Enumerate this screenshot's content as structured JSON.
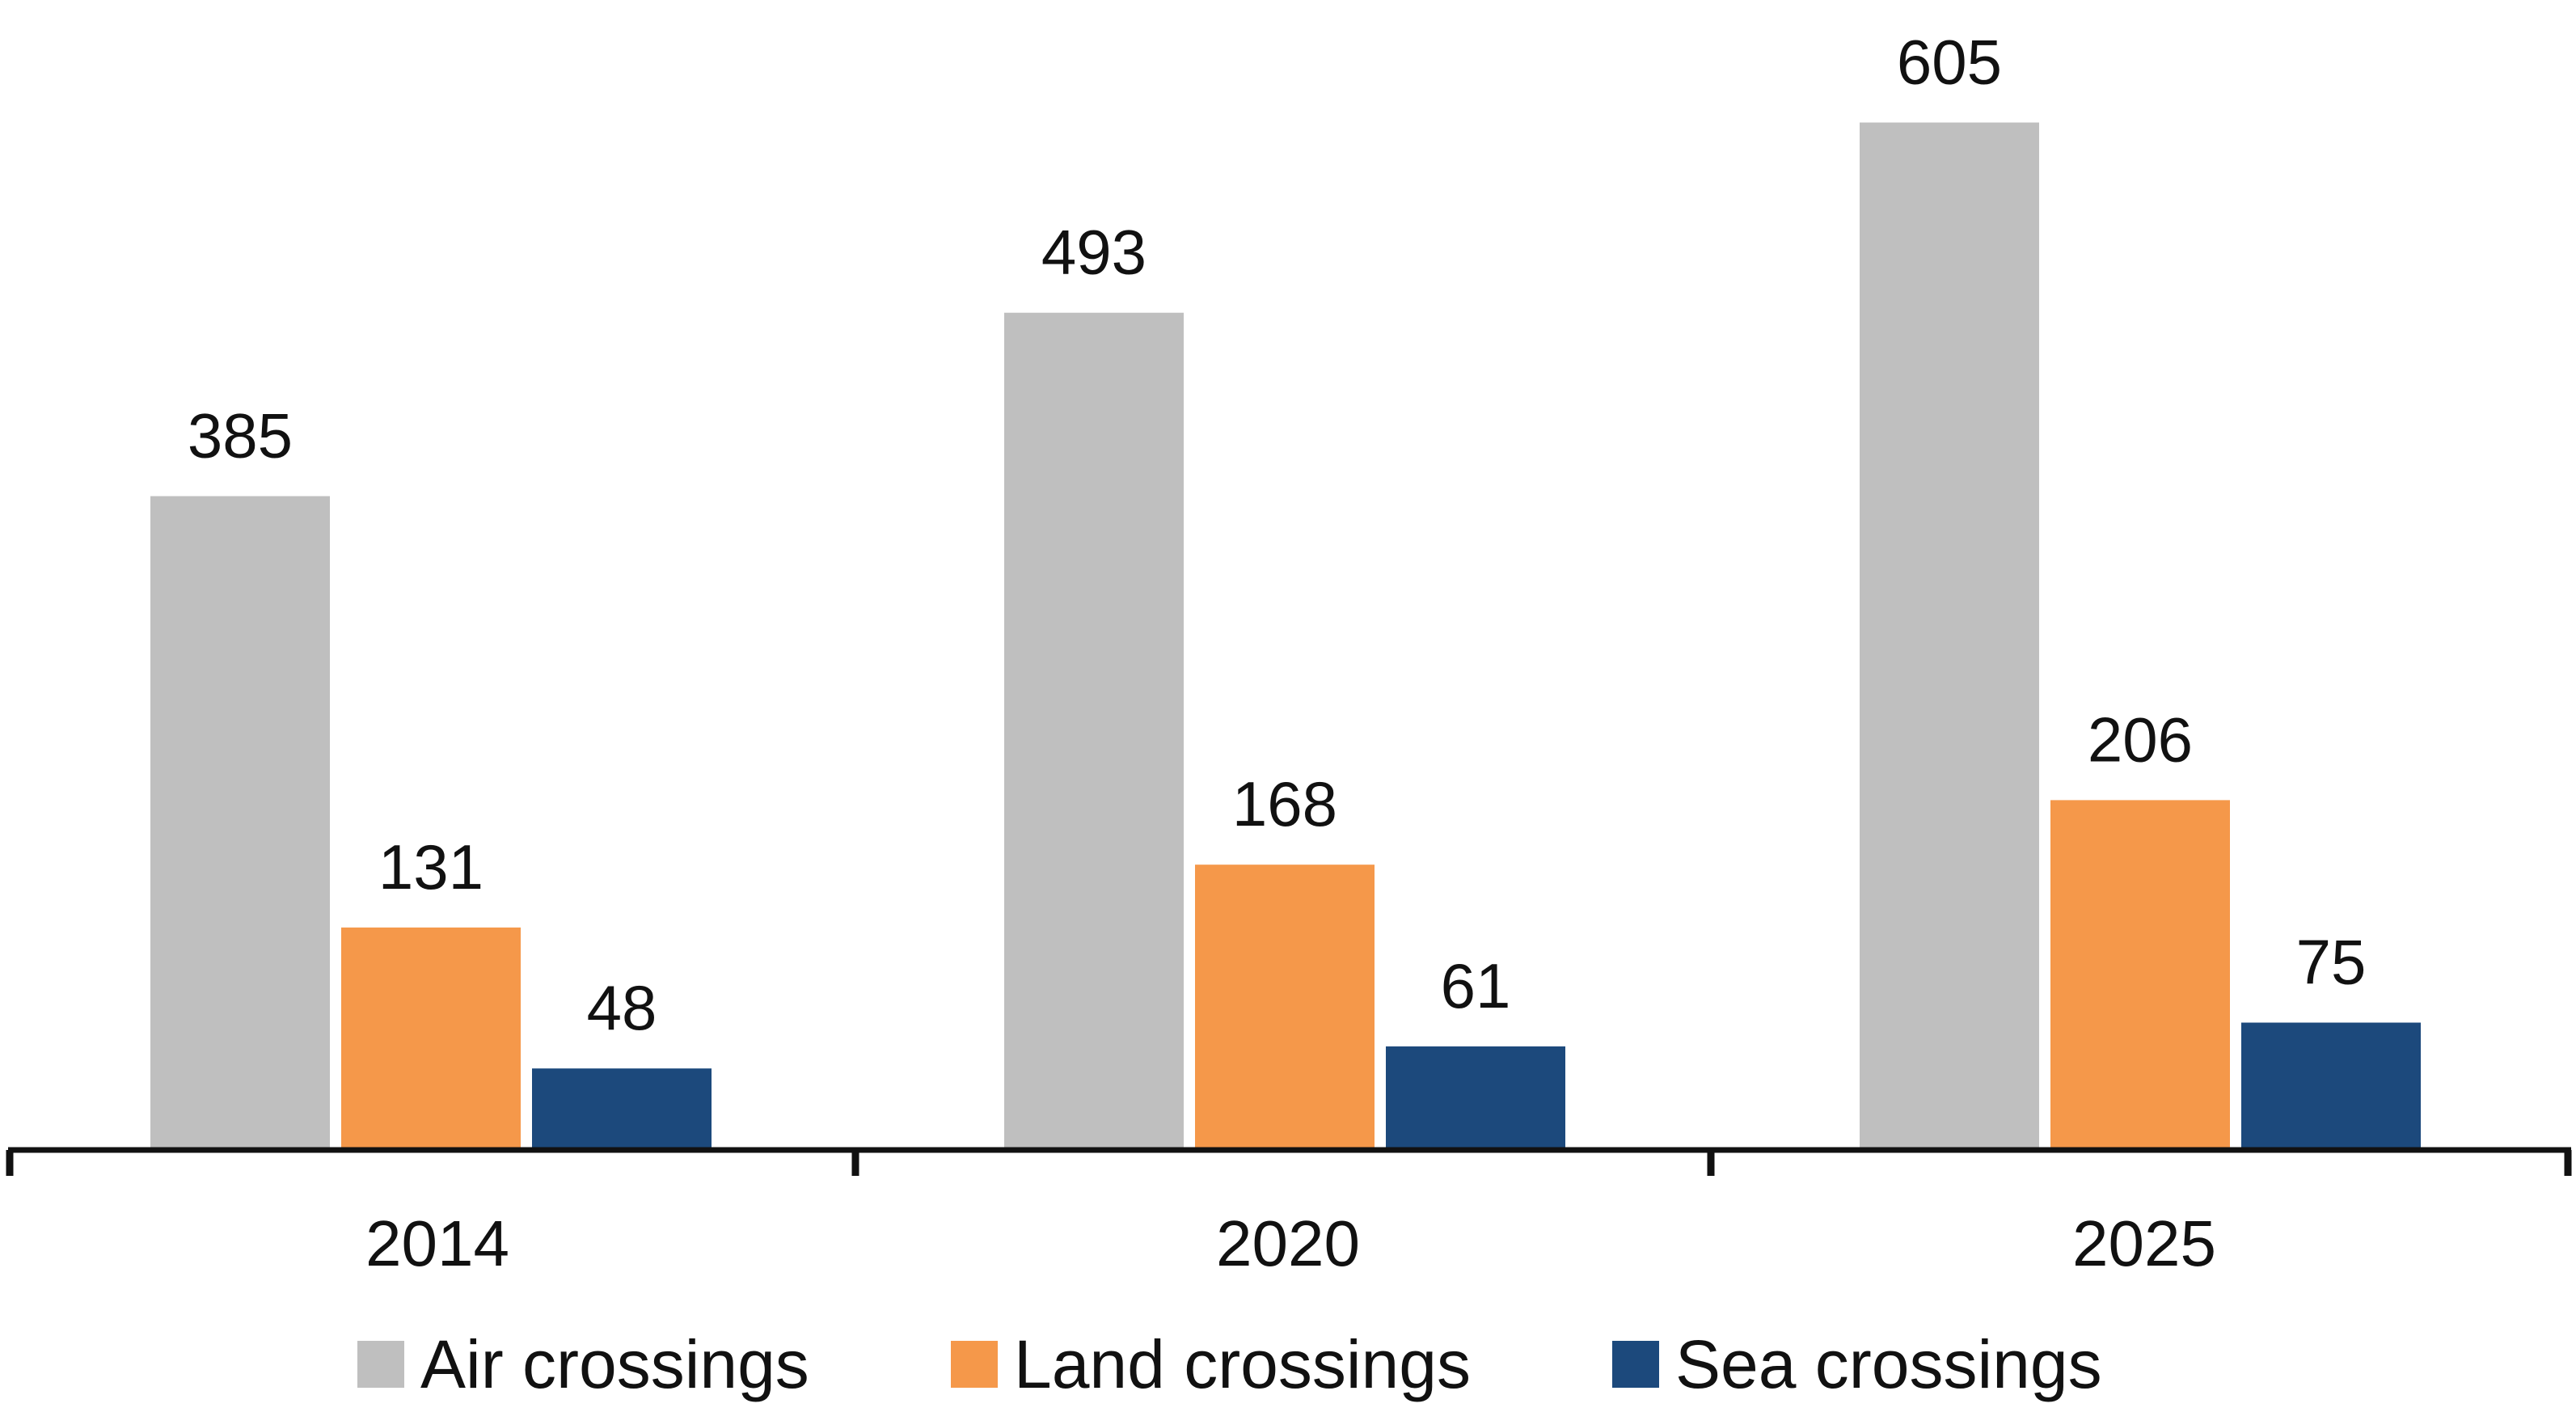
{
  "chart_data": {
    "type": "bar",
    "title": "",
    "xlabel": "",
    "ylabel": "",
    "categories": [
      "2014",
      "2020",
      "2025"
    ],
    "series": [
      {
        "name": "Air crossings",
        "color": "#BFBFBF",
        "values": [
          385,
          493,
          605
        ]
      },
      {
        "name": "Land crossings",
        "color": "#F5984A",
        "values": [
          131,
          168,
          206
        ]
      },
      {
        "name": "Sea crossings",
        "color": "#1C497C",
        "values": [
          48,
          61,
          75
        ]
      }
    ],
    "ylim": [
      0,
      660
    ],
    "grid": false,
    "legend_position": "bottom",
    "data_labels": true,
    "axis_color": "#111111"
  }
}
